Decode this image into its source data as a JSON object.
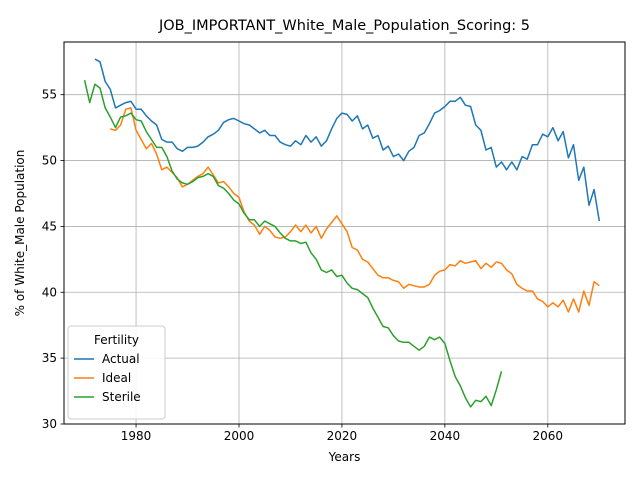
{
  "chart_data": {
    "type": "line",
    "title": "JOB_IMPORTANT_White_Male_Population_Scoring: 5",
    "xlabel": "Years",
    "ylabel": "% of White_Male Population",
    "xlim": [
      1966,
      2075
    ],
    "ylim": [
      30,
      59
    ],
    "xticks": [
      1980,
      2000,
      2020,
      2040,
      2060
    ],
    "yticks": [
      30,
      35,
      40,
      45,
      50,
      55
    ],
    "grid": true,
    "legend": {
      "title": "Fertility",
      "placement": "lower-left"
    },
    "series": [
      {
        "name": "Actual",
        "color": "#1f77b4",
        "x": [
          1972,
          1973,
          1974,
          1975,
          1976,
          1977,
          1978,
          1979,
          1980,
          1981,
          1982,
          1983,
          1984,
          1985,
          1986,
          1987,
          1988,
          1989,
          1990,
          1991,
          1992,
          1993,
          1994,
          1995,
          1996,
          1997,
          1998,
          1999,
          2000,
          2001,
          2002,
          2003,
          2004,
          2005,
          2006,
          2007,
          2008,
          2009,
          2010,
          2011,
          2012,
          2013,
          2014,
          2015,
          2016,
          2017,
          2018,
          2019,
          2020,
          2021,
          2022,
          2023,
          2024,
          2025,
          2026,
          2027,
          2028,
          2029,
          2030,
          2031,
          2032,
          2033,
          2034,
          2035,
          2036,
          2037,
          2038,
          2039,
          2040,
          2041,
          2042,
          2043,
          2044,
          2045,
          2046,
          2047,
          2048,
          2049,
          2050,
          2051,
          2052,
          2053,
          2054,
          2055,
          2056,
          2057,
          2058,
          2059,
          2060,
          2061,
          2062,
          2063,
          2064,
          2065,
          2066,
          2067,
          2068,
          2069,
          2070
        ],
        "values": [
          57.7,
          57.5,
          56.0,
          55.4,
          54.0,
          54.2,
          54.4,
          54.5,
          53.9,
          53.9,
          53.4,
          53.0,
          52.7,
          51.6,
          51.4,
          51.4,
          50.9,
          50.7,
          51.0,
          51.0,
          51.1,
          51.4,
          51.8,
          52.0,
          52.3,
          52.9,
          53.1,
          53.2,
          53.0,
          52.8,
          52.7,
          52.4,
          52.1,
          52.3,
          51.9,
          51.9,
          51.4,
          51.2,
          51.1,
          51.5,
          51.2,
          51.9,
          51.4,
          51.8,
          51.1,
          51.5,
          52.4,
          53.2,
          53.6,
          53.5,
          53.0,
          53.4,
          52.4,
          52.7,
          51.7,
          51.9,
          50.8,
          51.1,
          50.3,
          50.5,
          50.0,
          50.7,
          51.0,
          51.9,
          52.1,
          52.8,
          53.6,
          53.8,
          54.1,
          54.5,
          54.5,
          54.8,
          54.2,
          54.1,
          52.7,
          52.3,
          50.8,
          51.0,
          49.5,
          49.9,
          49.3,
          49.9,
          49.3,
          50.3,
          50.1,
          51.2,
          51.2,
          52.0,
          51.8,
          52.5,
          51.5,
          52.2,
          50.2,
          51.2,
          48.5,
          49.5,
          46.6,
          47.8,
          45.4
        ]
      },
      {
        "name": "Ideal",
        "color": "#ff7f0e",
        "x": [
          1975,
          1976,
          1977,
          1978,
          1979,
          1980,
          1981,
          1982,
          1983,
          1984,
          1985,
          1986,
          1987,
          1988,
          1989,
          1990,
          1991,
          1992,
          1993,
          1994,
          1995,
          1996,
          1997,
          1998,
          1999,
          2000,
          2001,
          2002,
          2003,
          2004,
          2005,
          2006,
          2007,
          2008,
          2009,
          2010,
          2011,
          2012,
          2013,
          2014,
          2015,
          2016,
          2017,
          2018,
          2019,
          2020,
          2021,
          2022,
          2023,
          2024,
          2025,
          2026,
          2027,
          2028,
          2029,
          2030,
          2031,
          2032,
          2033,
          2034,
          2035,
          2036,
          2037,
          2038,
          2039,
          2040,
          2041,
          2042,
          2043,
          2044,
          2045,
          2046,
          2047,
          2048,
          2049,
          2050,
          2051,
          2052,
          2053,
          2054,
          2055,
          2056,
          2057,
          2058,
          2059,
          2060,
          2061,
          2062,
          2063,
          2064,
          2065,
          2066,
          2067,
          2068,
          2069,
          2070
        ],
        "values": [
          52.4,
          52.3,
          52.7,
          53.9,
          54.0,
          52.3,
          51.6,
          50.9,
          51.3,
          50.5,
          49.3,
          49.5,
          49.1,
          48.7,
          48.0,
          48.2,
          48.5,
          48.8,
          49.0,
          49.5,
          48.9,
          48.3,
          48.4,
          48.0,
          47.5,
          47.2,
          46.1,
          45.4,
          45.1,
          44.4,
          45.0,
          44.7,
          44.2,
          44.1,
          44.2,
          44.6,
          45.1,
          44.6,
          45.1,
          44.5,
          45.0,
          44.1,
          44.8,
          45.3,
          45.8,
          45.2,
          44.6,
          43.4,
          43.2,
          42.5,
          42.3,
          41.8,
          41.3,
          41.1,
          41.1,
          40.9,
          40.8,
          40.3,
          40.6,
          40.5,
          40.4,
          40.4,
          40.6,
          41.3,
          41.6,
          41.7,
          42.1,
          42.0,
          42.4,
          42.2,
          42.3,
          42.4,
          41.8,
          42.2,
          41.9,
          42.3,
          42.2,
          41.7,
          41.4,
          40.6,
          40.3,
          40.1,
          40.1,
          39.5,
          39.3,
          38.9,
          39.2,
          38.9,
          39.4,
          38.5,
          39.5,
          38.5,
          40.1,
          39.0,
          40.8,
          40.5
        ]
      },
      {
        "name": "Sterile",
        "color": "#2ca02c",
        "x": [
          1970,
          1971,
          1972,
          1973,
          1974,
          1975,
          1976,
          1977,
          1978,
          1979,
          1980,
          1981,
          1982,
          1983,
          1984,
          1985,
          1986,
          1987,
          1988,
          1989,
          1990,
          1991,
          1992,
          1993,
          1994,
          1995,
          1996,
          1997,
          1998,
          1999,
          2000,
          2001,
          2002,
          2003,
          2004,
          2005,
          2006,
          2007,
          2008,
          2009,
          2010,
          2011,
          2012,
          2013,
          2014,
          2015,
          2016,
          2017,
          2018,
          2019,
          2020,
          2021,
          2022,
          2023,
          2024,
          2025,
          2026,
          2027,
          2028,
          2029,
          2030,
          2031,
          2032,
          2033,
          2034,
          2035,
          2036,
          2037,
          2038,
          2039,
          2040,
          2041,
          2042,
          2043,
          2044,
          2045,
          2046,
          2047,
          2048,
          2049,
          2050,
          2051
        ],
        "values": [
          56.1,
          54.4,
          55.8,
          55.5,
          54.0,
          53.3,
          52.5,
          53.3,
          53.4,
          53.6,
          53.1,
          53.0,
          52.2,
          51.6,
          51.0,
          51.0,
          50.3,
          49.2,
          48.6,
          48.3,
          48.2,
          48.4,
          48.7,
          48.8,
          49.0,
          48.8,
          48.1,
          47.9,
          47.5,
          47.0,
          46.7,
          46.0,
          45.5,
          45.5,
          45.0,
          45.4,
          45.2,
          45.0,
          44.5,
          44.1,
          43.9,
          43.9,
          43.7,
          43.8,
          43.0,
          42.5,
          41.7,
          41.5,
          41.7,
          41.2,
          41.3,
          40.7,
          40.3,
          40.2,
          39.9,
          39.6,
          38.8,
          38.1,
          37.4,
          37.3,
          36.7,
          36.3,
          36.2,
          36.2,
          35.9,
          35.6,
          35.9,
          36.6,
          36.4,
          36.6,
          36.1,
          34.8,
          33.6,
          32.9,
          32.0,
          31.3,
          31.8,
          31.7,
          32.1,
          31.4,
          32.6,
          34.0
        ]
      }
    ]
  }
}
